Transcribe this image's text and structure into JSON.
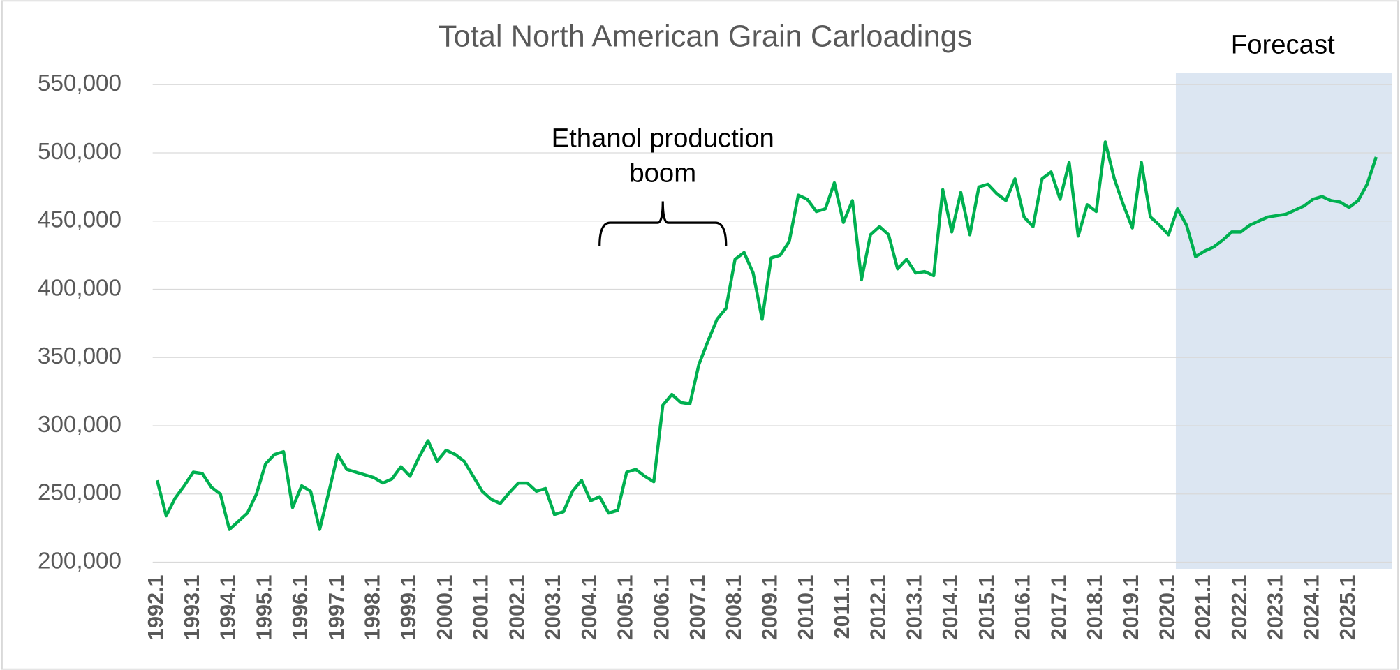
{
  "chart_data": {
    "type": "line",
    "title": "Total North American Grain Carloadings",
    "categories": [
      "1992.1",
      null,
      null,
      null,
      "1993.1",
      null,
      null,
      null,
      "1994.1",
      null,
      null,
      null,
      "1995.1",
      null,
      null,
      null,
      "1996.1",
      null,
      null,
      null,
      "1997.1",
      null,
      null,
      null,
      "1998.1",
      null,
      null,
      null,
      "1999.1",
      null,
      null,
      null,
      "2000.1",
      null,
      null,
      null,
      "2001.1",
      null,
      null,
      null,
      "2002.1",
      null,
      null,
      null,
      "2003.1",
      null,
      null,
      null,
      "2004.1",
      null,
      null,
      null,
      "2005.1",
      null,
      null,
      null,
      "2006.1",
      null,
      null,
      null,
      "2007.1",
      null,
      null,
      null,
      "2008.1",
      null,
      null,
      null,
      "2009.1",
      null,
      null,
      null,
      "2010.1",
      null,
      null,
      null,
      "2011.1",
      null,
      null,
      null,
      "2012.1",
      null,
      null,
      null,
      "2013.1",
      null,
      null,
      null,
      "2014.1",
      null,
      null,
      null,
      "2015.1",
      null,
      null,
      null,
      "2016.1",
      null,
      null,
      null,
      "2017.1",
      null,
      null,
      null,
      "2018.1",
      null,
      null,
      null,
      "2019.1",
      null,
      null,
      null,
      "2020.1",
      null,
      null,
      null,
      "2021.1",
      null,
      null,
      null,
      "2022.1",
      null,
      null,
      null,
      "2023.1",
      null,
      null,
      null,
      "2024.1",
      null,
      null,
      null,
      "2025.1",
      null,
      null,
      null
    ],
    "series": [
      {
        "name": "Total North American Grain Carloadings",
        "color": "#00b050",
        "values": [
          260000,
          234000,
          247000,
          256000,
          266000,
          265000,
          255000,
          250000,
          224000,
          230000,
          236000,
          250000,
          272000,
          279000,
          281000,
          240000,
          256000,
          252000,
          224000,
          251000,
          279000,
          268000,
          266000,
          264000,
          262000,
          258000,
          261000,
          270000,
          263000,
          277000,
          289000,
          274000,
          282000,
          279000,
          274000,
          263000,
          252000,
          246000,
          243000,
          251000,
          258000,
          258000,
          252000,
          254000,
          235000,
          237000,
          252000,
          260000,
          245000,
          248000,
          236000,
          238000,
          266000,
          268000,
          263000,
          259000,
          315000,
          323000,
          317000,
          316000,
          345000,
          362000,
          378000,
          386000,
          422000,
          427000,
          412000,
          378000,
          423000,
          425000,
          435000,
          469000,
          466000,
          457000,
          459000,
          478000,
          449000,
          465000,
          407000,
          440000,
          446000,
          440000,
          415000,
          422000,
          412000,
          413000,
          410000,
          473000,
          442000,
          471000,
          440000,
          475000,
          477000,
          470000,
          465000,
          481000,
          453000,
          446000,
          481000,
          486000,
          466000,
          493000,
          439000,
          462000,
          457000,
          508000,
          481000,
          462000,
          445000,
          493000,
          453000,
          447000,
          440000,
          459000,
          447000,
          424000,
          428000,
          431000,
          436000,
          442000,
          442000,
          447000,
          450000,
          453000,
          454000,
          455000,
          458000,
          461000,
          466000,
          468000,
          465000,
          464000,
          460000,
          465000,
          477000,
          497000
        ]
      }
    ],
    "ylim": [
      200000,
      550000
    ],
    "yticks": [
      {
        "value": 200000,
        "label": "200,000"
      },
      {
        "value": 250000,
        "label": "250,000"
      },
      {
        "value": 300000,
        "label": "300,000"
      },
      {
        "value": 350000,
        "label": "350,000"
      },
      {
        "value": 400000,
        "label": "400,000"
      },
      {
        "value": 450000,
        "label": "450,000"
      },
      {
        "value": 500000,
        "label": "500,000"
      },
      {
        "value": 550000,
        "label": "550,000"
      }
    ],
    "grid": true,
    "forecast": {
      "label": "Forecast",
      "start": 114,
      "color": "#dce6f2"
    },
    "annotation": {
      "lines": [
        "Ethanol production",
        "boom"
      ],
      "from": 49,
      "to": 63
    }
  }
}
